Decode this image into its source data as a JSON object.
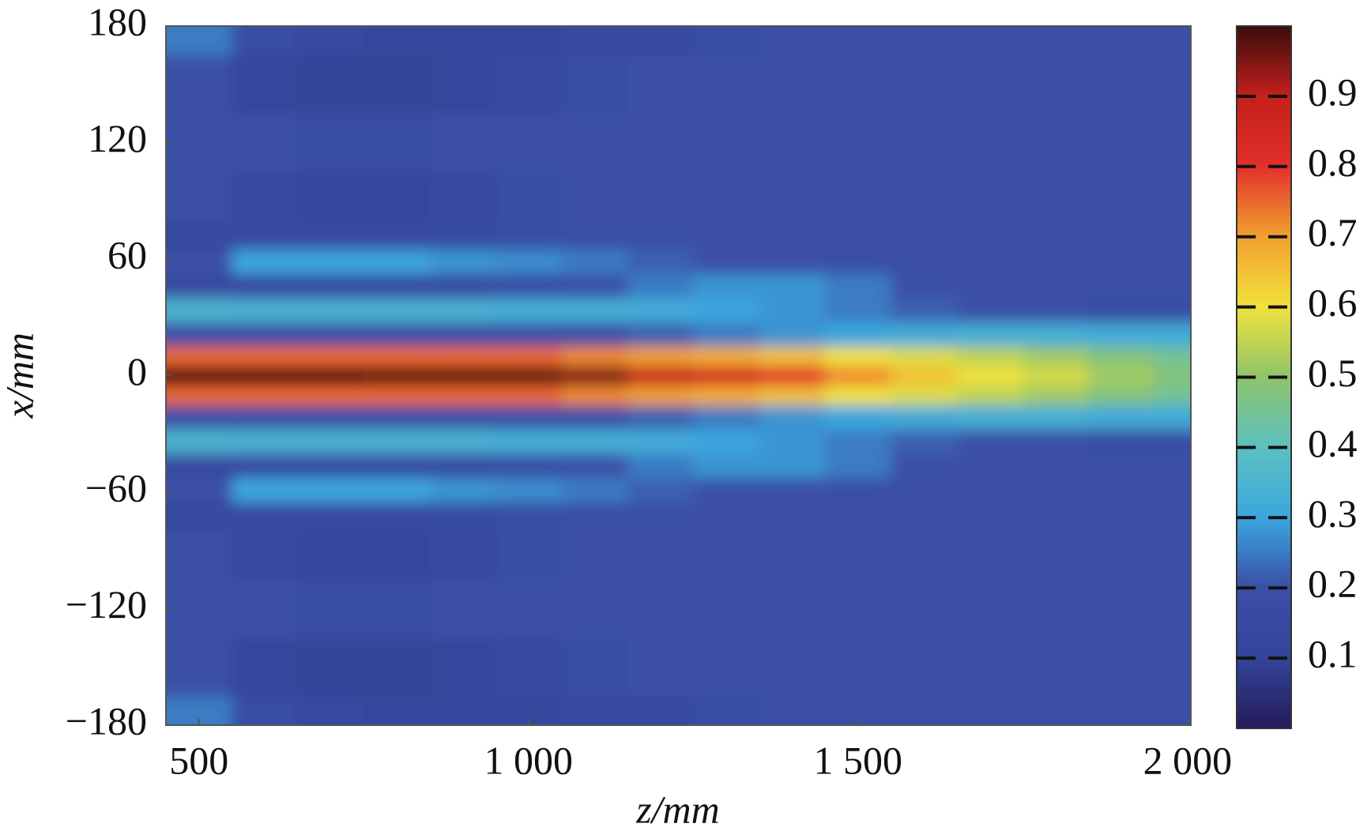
{
  "chart_data": {
    "type": "heatmap",
    "x_label": "z/mm",
    "y_label": "x/mm",
    "x": [
      500,
      600,
      700,
      800,
      900,
      1000,
      1100,
      1200,
      1300,
      1400,
      1500,
      1600,
      1700,
      1800,
      1900,
      2000
    ],
    "y": [
      -180,
      -150,
      -120,
      -90,
      -70,
      -60,
      -45,
      -35,
      -20,
      -10,
      0,
      10,
      20,
      35,
      45,
      60,
      70,
      90,
      120,
      150,
      180
    ],
    "values": [
      [
        0.25,
        0.18,
        0.15,
        0.12,
        0.12,
        0.12,
        0.15,
        0.15,
        0.18,
        0.2,
        0.2,
        0.2,
        0.2,
        0.2,
        0.2,
        0.2
      ],
      [
        0.2,
        0.12,
        0.1,
        0.1,
        0.12,
        0.15,
        0.18,
        0.2,
        0.2,
        0.2,
        0.2,
        0.2,
        0.2,
        0.2,
        0.2,
        0.2
      ],
      [
        0.2,
        0.2,
        0.18,
        0.18,
        0.2,
        0.2,
        0.2,
        0.2,
        0.2,
        0.2,
        0.2,
        0.2,
        0.2,
        0.2,
        0.2,
        0.2
      ],
      [
        0.2,
        0.15,
        0.12,
        0.12,
        0.15,
        0.18,
        0.2,
        0.2,
        0.2,
        0.2,
        0.2,
        0.2,
        0.2,
        0.2,
        0.2,
        0.2
      ],
      [
        0.15,
        0.15,
        0.15,
        0.15,
        0.17,
        0.18,
        0.2,
        0.2,
        0.2,
        0.2,
        0.2,
        0.2,
        0.2,
        0.2,
        0.2,
        0.2
      ],
      [
        0.2,
        0.3,
        0.3,
        0.3,
        0.28,
        0.27,
        0.25,
        0.22,
        0.2,
        0.2,
        0.2,
        0.2,
        0.2,
        0.2,
        0.2,
        0.2
      ],
      [
        0.15,
        0.15,
        0.15,
        0.15,
        0.15,
        0.18,
        0.2,
        0.25,
        0.28,
        0.28,
        0.25,
        0.2,
        0.2,
        0.2,
        0.2,
        0.2
      ],
      [
        0.35,
        0.34,
        0.34,
        0.34,
        0.34,
        0.33,
        0.33,
        0.32,
        0.3,
        0.28,
        0.25,
        0.22,
        0.2,
        0.2,
        0.18,
        0.18
      ],
      [
        0.2,
        0.2,
        0.2,
        0.2,
        0.2,
        0.2,
        0.2,
        0.22,
        0.25,
        0.28,
        0.3,
        0.32,
        0.33,
        0.33,
        0.32,
        0.32
      ],
      [
        0.75,
        0.75,
        0.75,
        0.75,
        0.75,
        0.75,
        0.72,
        0.7,
        0.68,
        0.65,
        0.6,
        0.58,
        0.55,
        0.52,
        0.48,
        0.45
      ],
      [
        0.98,
        0.98,
        0.98,
        0.97,
        0.97,
        0.97,
        0.95,
        0.9,
        0.85,
        0.8,
        0.72,
        0.65,
        0.6,
        0.57,
        0.52,
        0.48
      ],
      [
        0.75,
        0.75,
        0.75,
        0.75,
        0.75,
        0.75,
        0.72,
        0.7,
        0.68,
        0.65,
        0.6,
        0.58,
        0.55,
        0.52,
        0.48,
        0.45
      ],
      [
        0.2,
        0.2,
        0.2,
        0.2,
        0.2,
        0.2,
        0.2,
        0.22,
        0.25,
        0.28,
        0.3,
        0.32,
        0.33,
        0.33,
        0.32,
        0.32
      ],
      [
        0.35,
        0.34,
        0.34,
        0.34,
        0.34,
        0.33,
        0.33,
        0.32,
        0.3,
        0.28,
        0.25,
        0.22,
        0.2,
        0.2,
        0.18,
        0.18
      ],
      [
        0.15,
        0.15,
        0.15,
        0.15,
        0.15,
        0.18,
        0.2,
        0.25,
        0.28,
        0.28,
        0.25,
        0.2,
        0.2,
        0.2,
        0.2,
        0.2
      ],
      [
        0.2,
        0.3,
        0.3,
        0.3,
        0.28,
        0.27,
        0.25,
        0.22,
        0.2,
        0.2,
        0.2,
        0.2,
        0.2,
        0.2,
        0.2,
        0.2
      ],
      [
        0.15,
        0.15,
        0.15,
        0.15,
        0.17,
        0.18,
        0.2,
        0.2,
        0.2,
        0.2,
        0.2,
        0.2,
        0.2,
        0.2,
        0.2,
        0.2
      ],
      [
        0.2,
        0.15,
        0.12,
        0.12,
        0.15,
        0.18,
        0.2,
        0.2,
        0.2,
        0.2,
        0.2,
        0.2,
        0.2,
        0.2,
        0.2,
        0.2
      ],
      [
        0.2,
        0.2,
        0.18,
        0.18,
        0.2,
        0.2,
        0.2,
        0.2,
        0.2,
        0.2,
        0.2,
        0.2,
        0.2,
        0.2,
        0.2,
        0.2
      ],
      [
        0.2,
        0.12,
        0.1,
        0.1,
        0.12,
        0.15,
        0.18,
        0.2,
        0.2,
        0.2,
        0.2,
        0.2,
        0.2,
        0.2,
        0.2,
        0.2
      ],
      [
        0.25,
        0.18,
        0.15,
        0.12,
        0.12,
        0.12,
        0.15,
        0.15,
        0.18,
        0.2,
        0.2,
        0.2,
        0.2,
        0.2,
        0.2,
        0.2
      ]
    ],
    "xlim": [
      450,
      2005
    ],
    "ylim": [
      -180,
      180
    ],
    "xticks": [
      500,
      {
        "value": 1000,
        "label": "1 000"
      },
      {
        "value": 1500,
        "label": "1 500"
      },
      {
        "value": 2000,
        "label": "2 000"
      }
    ],
    "yticks": [
      {
        "value": -180,
        "label": "−180"
      },
      {
        "value": -120,
        "label": "−120"
      },
      {
        "value": -60,
        "label": "−60"
      },
      0,
      60,
      120,
      180
    ],
    "clim": [
      0,
      1
    ],
    "colorbar_ticks": [
      0.1,
      0.2,
      0.3,
      0.4,
      0.5,
      0.6,
      0.7,
      0.8,
      0.9
    ],
    "colormap": [
      "#241a5a",
      "#34449a",
      "#3a4fa6",
      "#3ba6de",
      "#5cc0c0",
      "#8ec46a",
      "#f0e23c",
      "#f2a030",
      "#e2302a",
      "#c4201c",
      "#3a0c0c"
    ]
  }
}
